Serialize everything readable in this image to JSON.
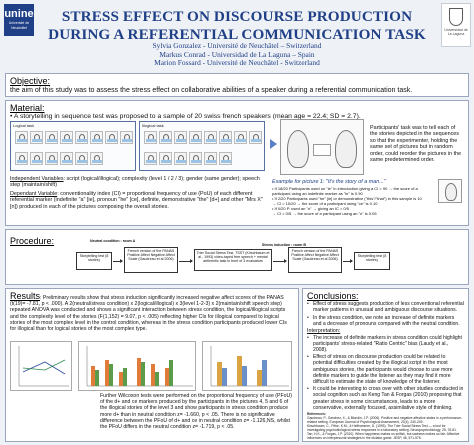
{
  "logos": {
    "left_logo_text": "unine",
    "left_logo_sub": "Université de Neuchâtel",
    "right_logo_text": "Universidad de La Laguna"
  },
  "header": {
    "title": "STRESS EFFECT ON DISCOURSE PRODUCTION DURING A REFERENTIAL COMMUNICATION TASK",
    "authors": [
      "Sylvia Gonzalez - Université de Neuchâtel – Switzerland",
      "Markus Conrad - Universidad de La Laguna – Spain",
      "Marion Fossard - Université de Neuchâtel - Switzerland"
    ]
  },
  "objective": {
    "heading": "Objective:",
    "text": "the aim of this study was to assess the stress effect on collaborative abilities of a speaker during a referential communication task."
  },
  "material": {
    "heading": "Material:",
    "intro": "• A storytelling in sequence test was proposed to a sample of 20 swiss french speakers (mean age = 22.4; SD = 2.7).",
    "panels": {
      "logical_label": "Logical task",
      "illogical_label": "Illogical task"
    },
    "ind_vars": {
      "heading": "Independent Variables",
      "text": ": script (logical/illogical); complexity (level 1 / 2 / 3); gender (same gender); speech step (maintain/shift)"
    },
    "dep_var": {
      "heading": "Dependant Variable",
      "text": ": conventionality index (CI) = proportional frequency of use (PoU) of each different referential marker (indefinite \"a\" [ie], pronoun \"he\" [ce], definite, demonstrative \"the\" [d+] and other \"Mrs X\" [n]) produced in each of the pictures composing the overall stories."
    },
    "participant_note": "Participants' task was to tell each of the stories depicted in the sequences so that the experimenter, holding the same set of pictures but in random order, could reorder the pictures in the same predetermined order.",
    "example": {
      "title": "Example for picture 1: \"It's the story of a man...\"",
      "lines": [
        "• If 18/20 Participants used on \"ie\" in introduction giving a CI = 90 → the score of a",
        "participant using an indefinite marker as \"ie\" is 0.90",
        "• If 2/20 Participants used \"he\" [ie] or demonstrative (\"this\"/\"that\") in this sample is 10",
        "→ CI = 10/20 → the score of a participant using \"ce\" is 0.10",
        "• If 0/20 P. used an \"n\" → giving an IC = 0/5",
        "→ CI = 0/5 → the score of a participant using an \"n\" is 0.05"
      ]
    }
  },
  "procedure": {
    "heading": "Procedure:",
    "neutral_label": "Neutral condition : room A",
    "stress_label": "Stress induction : room B",
    "boxes": [
      "Storytelling test (8 stories)",
      "French version of the PANAS Positive Affect Negative Affect Scale (Gaudreau et al 2006)",
      "Trier Social Stress Test, TSST (Kirschbaum et al., 1993) video-taped free speech + mental arithmetic task in front of 3 evaluators",
      "French version of the PANAS Positive Affect Negative Affect Scale (Gaudreau et al 2006)",
      "Storytelling test (8 stories)"
    ]
  },
  "results": {
    "heading": "Results",
    "text": ": Preliminary results show that stress induction significantly increased negative affect scores of the PANAS (t(19)= -7.81, p < .000). A 2(neutral/stress condition) x 2(logical/illogical) x 3(level 1-2-3) x 2(maintain/shift speech step) repeated ANOVA was conducted and shows a significant interaction between stress condition, the logical/illogical scripts and the complexity level of the stories (F(1,152) = 9.07, p < .005) reflecting higher CIs for illogical compared to logical stories of the most complex level in the control condition, whereas in the stress condition participants produced lower CIs for illogical than for logical stories of the most complex type.",
    "bottom_text": "Further Wilcoxon tests were performed on the proportional frequency of use (PFoU) of the d+ and ce markers produced by the participants in the pictures 4, 5 and 6 of the illogical stories of the level 3 and show participants in stress condition produce more d+ than in neutral condition z= -1.660, p < .05. There is no significative difference between the PFoU of d+ and ce in neutral condition z= -1.126,NS, whilst the PFoU differs in the neutral condition z= -1.719, p < .05."
  },
  "conclusions": {
    "heading": "Conclusions:",
    "bullets": [
      "Effect of stress suggests production of less conventional referential marker patterns in unusual and ambiguous discourse situations.",
      "In the stress condition, we note an increase of definite markers and a decrease of pronouns compared with the neutral condition."
    ],
    "interpretation_heading": "Interpretation:",
    "interpretation_bullets": [
      "The increase of definite markers in stress condition could highlight participants' stress-related \"Ratio Centric\" bias (Laudy et al., 2008).",
      "Effect of stress on discourse production could be related to potential difficulties created by the illogical script in the most ambiguous stories, the participants would choose to use more definite markers to guide the listener as they may find it more difficult to estimate the state of knowledge of the listener.",
      "It could be interesting to cross over with other studies conducted in social cognition such as Keng Tan & Forgas (2010) proposing that greater stress in some circumstances, leads to a more conservative, externally focused, assimilative style of thinking."
    ],
    "refs_heading": "References:",
    "refs": [
      "Gaudreau, P., Sanchez, X., & Blondin, J.P. (2006). Positive and negative affective states in a performance-related setting. European Journal of Psychological Assessment, 22(4), 240-249.",
      "Kirschbaum, C., Pirke, K.M., & Hellhammer, D. (1993). The Trier Social Stress Test — a tool for investigating psychobiological stress responses in a laboratory setting. Neuropsychobiology, 28, 76-81.",
      "Tan, H.K., & Forgas, J.P. (2010). When happiness makes us selfish, but sadness makes us fair: Affective influences on interpersonal strategies in the dictator game. JESP, 46, 571-576."
    ]
  },
  "colors": {
    "title_blue": "#1f3f86",
    "box_border": "#9aa6bd",
    "background": "#eef1f6"
  }
}
